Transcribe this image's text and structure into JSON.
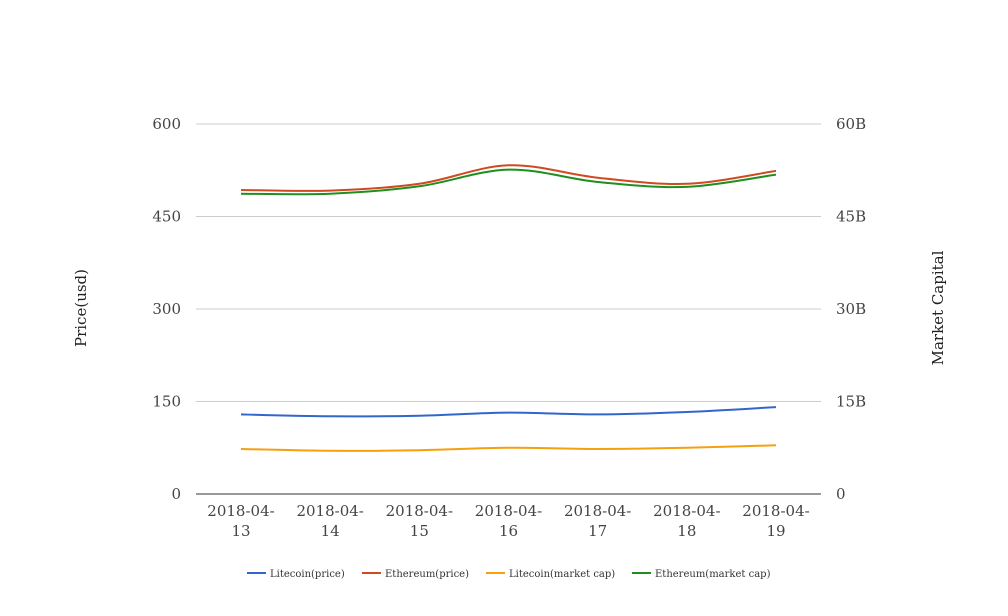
{
  "chart_data": {
    "type": "line",
    "categories": [
      "2018-04-13",
      "2018-04-14",
      "2018-04-15",
      "2018-04-16",
      "2018-04-17",
      "2018-04-18",
      "2018-04-19"
    ],
    "category_lines": [
      [
        "2018-04-",
        "13"
      ],
      [
        "2018-04-",
        "14"
      ],
      [
        "2018-04-",
        "15"
      ],
      [
        "2018-04-",
        "16"
      ],
      [
        "2018-04-",
        "17"
      ],
      [
        "2018-04-",
        "18"
      ],
      [
        "2018-04-",
        "19"
      ]
    ],
    "y_left": {
      "label": "Price(usd)",
      "ylim": [
        0,
        600
      ],
      "ticks": [
        0,
        150,
        300,
        450,
        600
      ],
      "tick_labels": [
        "0",
        "150",
        "300",
        "450",
        "600"
      ]
    },
    "y_right": {
      "label": "Market Capital",
      "ylim": [
        0,
        60000000000
      ],
      "ticks": [
        0,
        15000000000,
        30000000000,
        45000000000,
        60000000000
      ],
      "tick_labels": [
        "0",
        "15B",
        "30B",
        "45B",
        "60B"
      ]
    },
    "grid": true,
    "legend_position": "bottom",
    "series": [
      {
        "name": "Litecoin(price)",
        "axis": "left",
        "color": "#3366cc",
        "values": [
          129,
          126,
          127,
          132,
          129,
          133,
          141
        ]
      },
      {
        "name": "Ethereum(price)",
        "axis": "left",
        "color": "#d04a21",
        "values": [
          493,
          492,
          503,
          533,
          513,
          503,
          524
        ]
      },
      {
        "name": "Litecoin(market cap)",
        "axis": "right",
        "color": "#f5a00f",
        "values": [
          7300000000,
          7000000000,
          7100000000,
          7500000000,
          7300000000,
          7500000000,
          7900000000
        ]
      },
      {
        "name": "Ethereum(market cap)",
        "axis": "right",
        "color": "#1e8f1e",
        "values": [
          48700000000,
          48700000000,
          49900000000,
          52600000000,
          50600000000,
          49800000000,
          51800000000
        ]
      }
    ]
  }
}
